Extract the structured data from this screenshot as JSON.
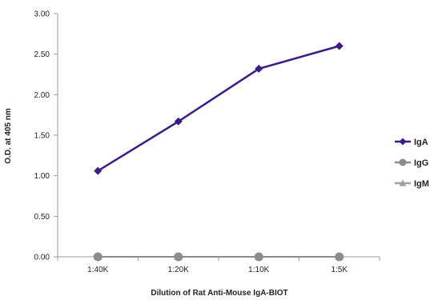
{
  "chart_data": {
    "type": "line",
    "title": "",
    "xlabel": "Dilution of Rat Anti-Mouse IgA-BIOT",
    "ylabel": "O.D. at 405 nm",
    "categories": [
      "1:40K",
      "1:20K",
      "1:10K",
      "1:5K"
    ],
    "ylim": [
      0,
      3
    ],
    "yticks": [
      "0.00",
      "0.50",
      "1.00",
      "1.50",
      "2.00",
      "2.50",
      "3.00"
    ],
    "grid": false,
    "legend_position": "right",
    "series": [
      {
        "name": "IgA",
        "values": [
          1.06,
          1.67,
          2.32,
          2.6
        ],
        "color": "#3d1a8c",
        "marker": "diamond"
      },
      {
        "name": "IgG",
        "values": [
          0.0,
          0.0,
          0.0,
          0.0
        ],
        "color": "#8c8c8c",
        "marker": "circle"
      },
      {
        "name": "IgM",
        "values": [
          0.0,
          0.0,
          0.0,
          0.0
        ],
        "color": "#a0a0a0",
        "marker": "triangle"
      }
    ]
  }
}
